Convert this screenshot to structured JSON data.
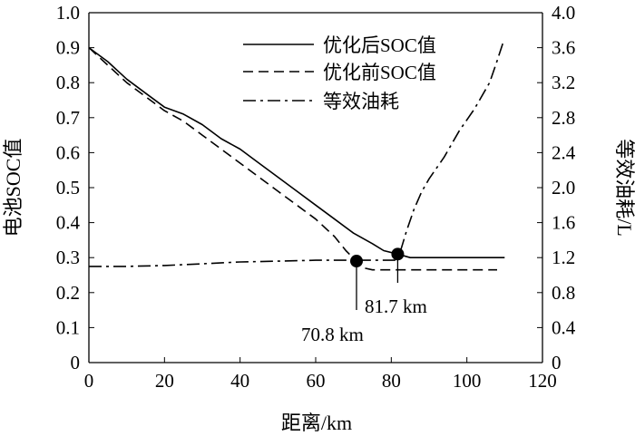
{
  "chart_data": {
    "type": "line",
    "xlabel": "距离/km",
    "ylabel": "电池SOC值",
    "y2label": "等效油耗/L",
    "xlim": [
      0,
      120
    ],
    "ylim": [
      0,
      1.0
    ],
    "y2lim": [
      0,
      4.0
    ],
    "x_ticks": [
      "0",
      "20",
      "40",
      "60",
      "80",
      "100",
      "120"
    ],
    "y_ticks": [
      "0",
      "0.1",
      "0.2",
      "0.3",
      "0.4",
      "0.5",
      "0.6",
      "0.7",
      "0.8",
      "0.9",
      "1.0"
    ],
    "y2_ticks": [
      "0",
      "0.4",
      "0.8",
      "1.2",
      "1.6",
      "2.0",
      "2.4",
      "2.8",
      "3.2",
      "3.6",
      "4.0"
    ],
    "grid": false,
    "legend_position": "top-right",
    "series": [
      {
        "name": "优化后SOC值",
        "axis": "left",
        "style": "solid",
        "x": [
          0,
          5,
          10,
          15,
          20,
          25,
          30,
          35,
          40,
          45,
          50,
          55,
          60,
          65,
          70,
          75,
          78,
          81.7,
          85,
          90,
          95,
          100,
          105,
          110
        ],
        "y": [
          0.9,
          0.86,
          0.81,
          0.77,
          0.73,
          0.71,
          0.68,
          0.64,
          0.61,
          0.57,
          0.53,
          0.49,
          0.45,
          0.41,
          0.37,
          0.34,
          0.32,
          0.31,
          0.3,
          0.3,
          0.3,
          0.3,
          0.3,
          0.3
        ]
      },
      {
        "name": "优化前SOC值",
        "axis": "left",
        "style": "dashed",
        "x": [
          0,
          5,
          10,
          15,
          20,
          25,
          30,
          35,
          40,
          45,
          50,
          55,
          60,
          65,
          68,
          70.8,
          73,
          75,
          80,
          85,
          90,
          95,
          100,
          105,
          108
        ],
        "y": [
          0.9,
          0.85,
          0.8,
          0.76,
          0.72,
          0.69,
          0.65,
          0.61,
          0.57,
          0.53,
          0.49,
          0.45,
          0.41,
          0.36,
          0.32,
          0.29,
          0.27,
          0.265,
          0.265,
          0.265,
          0.265,
          0.265,
          0.265,
          0.265,
          0.265
        ]
      },
      {
        "name": "等效油耗",
        "axis": "right",
        "style": "dashdot",
        "x": [
          0,
          10,
          20,
          30,
          40,
          50,
          60,
          70,
          80,
          81.7,
          84,
          86,
          88,
          90,
          94,
          98,
          102,
          106,
          108,
          109.5
        ],
        "y": [
          1.1,
          1.1,
          1.11,
          1.13,
          1.15,
          1.16,
          1.17,
          1.17,
          1.17,
          1.17,
          1.5,
          1.75,
          1.95,
          2.1,
          2.35,
          2.65,
          2.9,
          3.2,
          3.45,
          3.65
        ]
      }
    ],
    "annotations": [
      {
        "label": "70.8 km",
        "x": 70.8,
        "y": 0.29
      },
      {
        "label": "81.7 km",
        "x": 81.7,
        "y": 0.31
      }
    ]
  }
}
